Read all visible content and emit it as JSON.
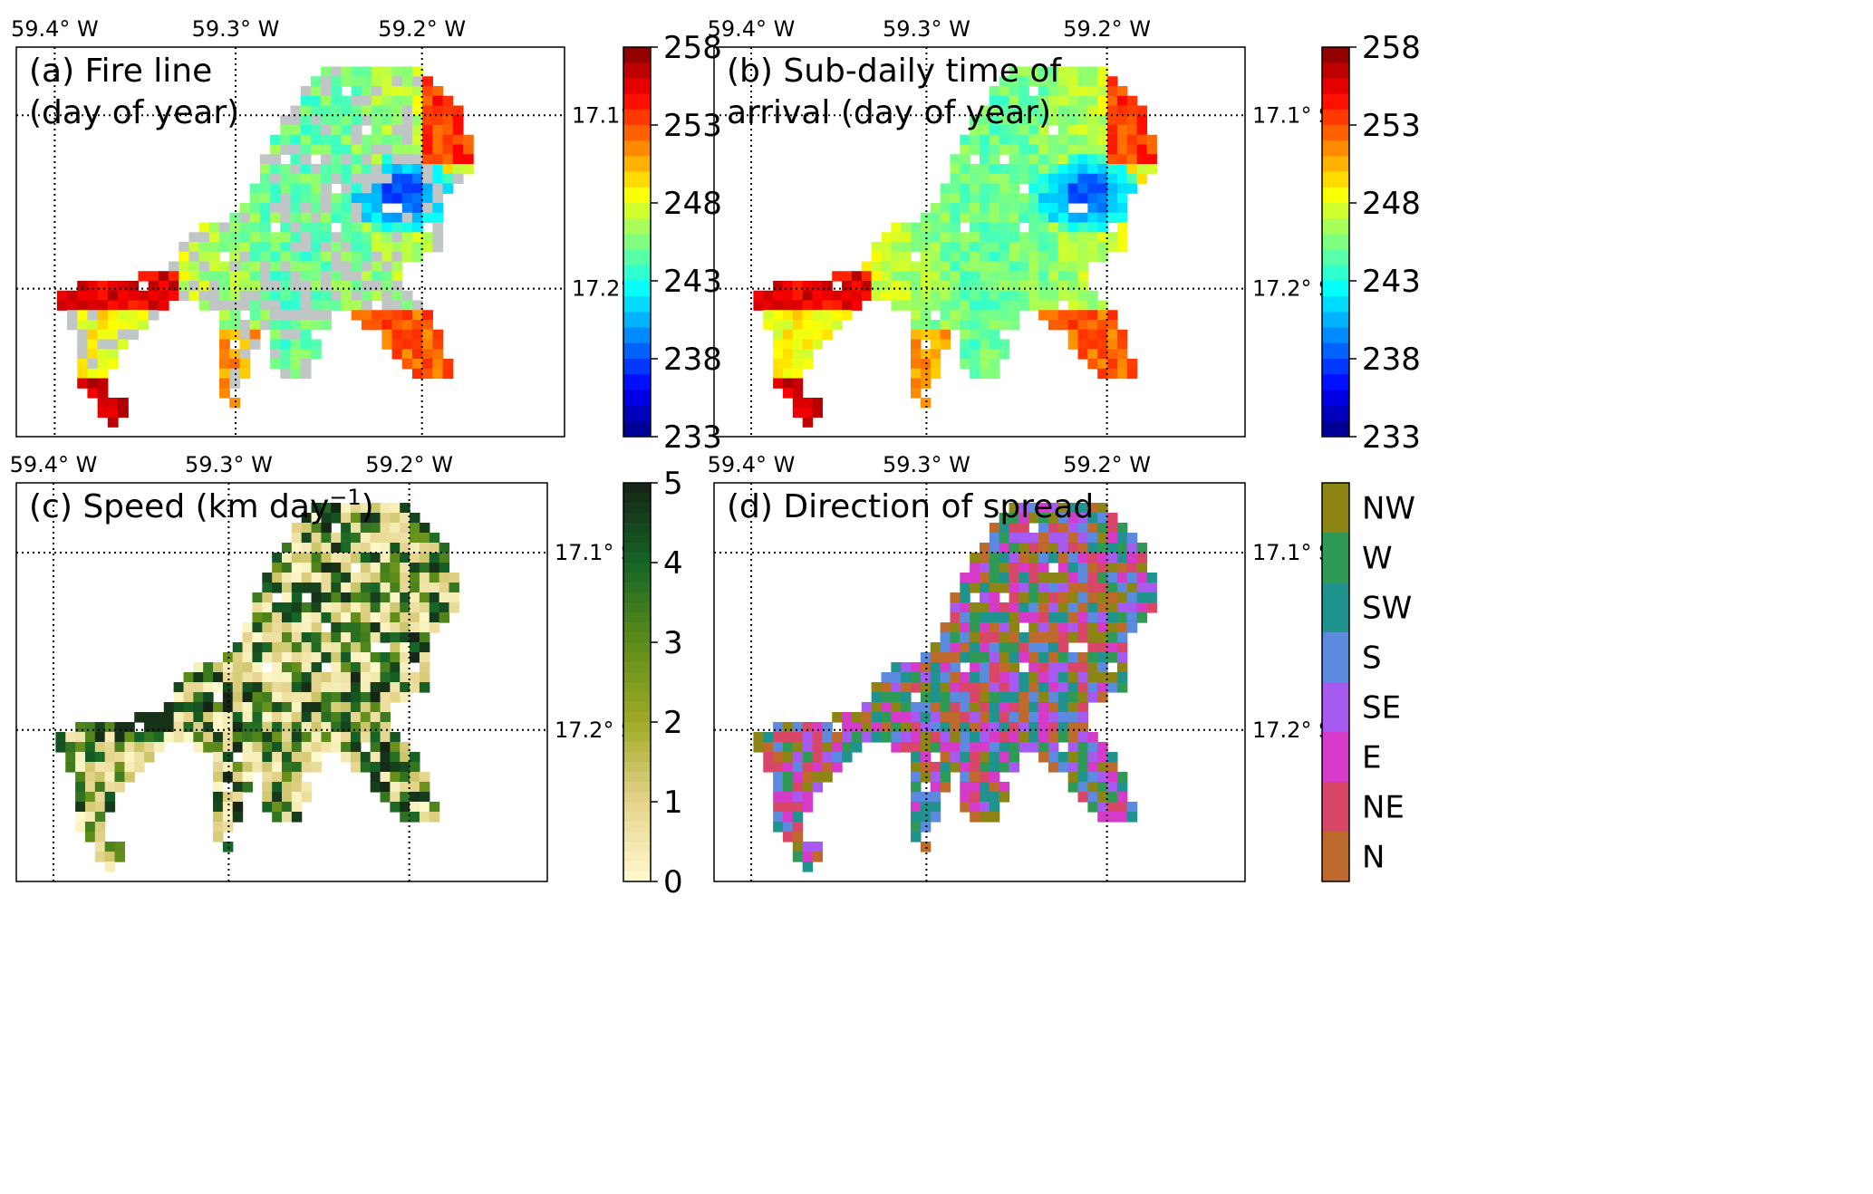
{
  "figure": {
    "lon_labels": [
      "59.4° W",
      "59.3° W",
      "59.2° W"
    ],
    "lat_labels": [
      "17.1° S",
      "17.2° S"
    ]
  },
  "panels": [
    {
      "id": "a",
      "title_lines": [
        "(a) Fire line",
        "(day of year)"
      ],
      "colormap": "jet",
      "colorbar_ticks": [
        "258",
        "253",
        "248",
        "243",
        "238",
        "233"
      ],
      "vmin": 233,
      "vmax": 258,
      "nodata_color": "#c0c5c5"
    },
    {
      "id": "b",
      "title_lines": [
        "(b) Sub-daily time of",
        "arrival (day of year)"
      ],
      "colormap": "jet",
      "colorbar_ticks": [
        "258",
        "253",
        "248",
        "243",
        "238",
        "233"
      ],
      "vmin": 233,
      "vmax": 258
    },
    {
      "id": "c",
      "title_prefix": "(c) Speed (km day",
      "title_sup": "−1",
      "title_suffix": ")",
      "colormap": "yellow-green",
      "colorbar_ticks": [
        "5",
        "4",
        "3",
        "2",
        "1",
        "0"
      ],
      "vmin": 0,
      "vmax": 5
    },
    {
      "id": "d",
      "title_lines": [
        "(d) Direction of spread"
      ],
      "colormap": "categorical",
      "colorbar_ticks": [
        "NW",
        "W",
        "SW",
        "S",
        "SE",
        "E",
        "NE",
        "N"
      ],
      "category_colors": [
        "#8c8516",
        "#2e9a55",
        "#20938f",
        "#5b8ade",
        "#a65aef",
        "#d63ac9",
        "#d94768",
        "#bd6a2c"
      ]
    }
  ]
}
